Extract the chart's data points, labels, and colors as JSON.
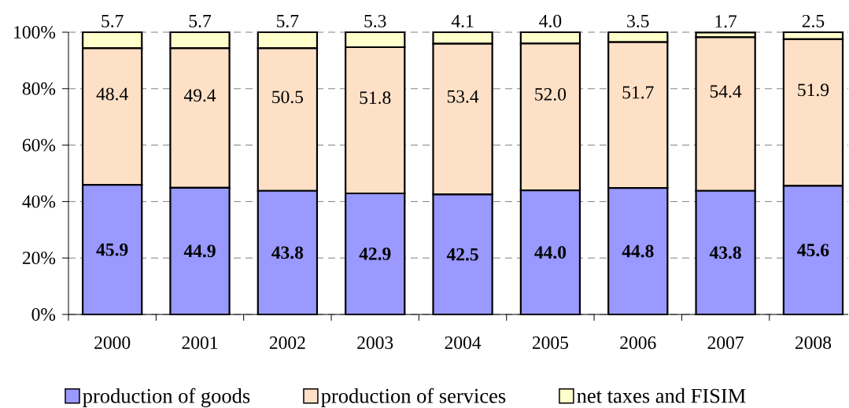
{
  "chart_data": {
    "type": "bar",
    "stacked": true,
    "categories": [
      "2000",
      "2001",
      "2002",
      "2003",
      "2004",
      "2005",
      "2006",
      "2007",
      "2008"
    ],
    "series": [
      {
        "name": "production of goods",
        "color": "#9999ff",
        "values": [
          45.9,
          44.9,
          43.8,
          42.9,
          42.5,
          44.0,
          44.8,
          43.8,
          45.6
        ],
        "value_labels": [
          "45.9",
          "44.9",
          "43.8",
          "42.9",
          "42.5",
          "44.0",
          "44.8",
          "43.8",
          "45.6"
        ]
      },
      {
        "name": "production of services",
        "color": "#fde0c5",
        "values": [
          48.4,
          49.4,
          50.5,
          51.8,
          53.4,
          52.0,
          51.7,
          54.4,
          51.9
        ],
        "value_labels": [
          "48.4",
          "49.4",
          "50.5",
          "51.8",
          "53.4",
          "52.0",
          "51.7",
          "54.4",
          "51.9"
        ]
      },
      {
        "name": "net taxes and FISIM",
        "color": "#ffffcc",
        "values": [
          5.7,
          5.7,
          5.7,
          5.3,
          4.1,
          4.0,
          3.5,
          1.7,
          2.5
        ],
        "value_labels": [
          "5.7",
          "5.7",
          "5.7",
          "5.3",
          "4.1",
          "4.0",
          "3.5",
          "1.7",
          "2.5"
        ]
      }
    ],
    "ylim": [
      0,
      100
    ],
    "yticks": [
      {
        "value": 0,
        "label": "0%"
      },
      {
        "value": 20,
        "label": "20%"
      },
      {
        "value": 40,
        "label": "40%"
      },
      {
        "value": 60,
        "label": "60%"
      },
      {
        "value": 80,
        "label": "80%"
      },
      {
        "value": 100,
        "label": "100%"
      }
    ],
    "grid": "y",
    "legend": "bottom"
  }
}
